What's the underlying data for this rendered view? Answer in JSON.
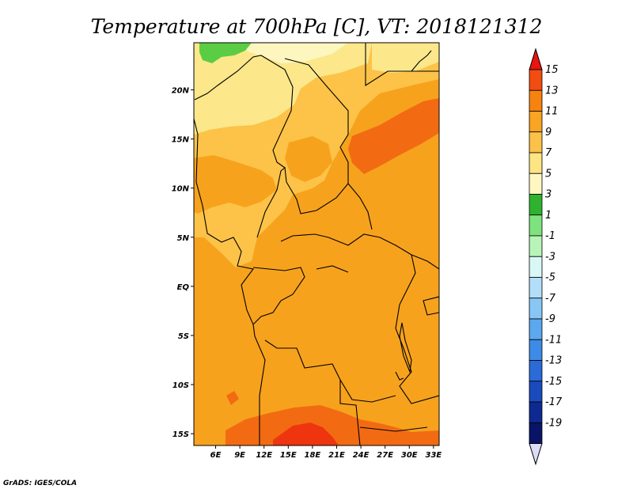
{
  "title": "Temperature at 700hPa [C], VT: 2018121312",
  "credit": "GrADS: IGES/COLA",
  "axes": {
    "lon_ticks": [
      "6E",
      "9E",
      "12E",
      "15E",
      "18E",
      "21E",
      "24E",
      "27E",
      "30E",
      "33E"
    ],
    "lat_ticks": [
      "20N",
      "15N",
      "10N",
      "5N",
      "EQ",
      "5S",
      "10S",
      "15S"
    ]
  },
  "map": {
    "lon_range": [
      3.3,
      33.7
    ],
    "lat_range": [
      -16.2,
      24.8
    ],
    "fill_colors": {
      "c5_7": "#fce78a",
      "c7_9": "#fcc348",
      "c9_11": "#f7a21d",
      "c11_13": "#f26b12",
      "c13_15": "#ee3510",
      "c1_3": "#5acd44",
      "c3_5": "#fdf6bf"
    }
  },
  "colorbar": {
    "labels": [
      "15",
      "13",
      "11",
      "9",
      "7",
      "5",
      "3",
      "1",
      "-1",
      "-3",
      "-5",
      "-7",
      "-9",
      "-11",
      "-13",
      "-15",
      "-17",
      "-19"
    ],
    "colors": [
      "#e8140e",
      "#f14d10",
      "#f7830f",
      "#f9a423",
      "#fbc24a",
      "#fde584",
      "#fef7c2",
      "#2fb32f",
      "#7ee37e",
      "#b8f4b8",
      "#d9f7f7",
      "#b3def9",
      "#88c7f5",
      "#5ba8ef",
      "#3d8be6",
      "#2a6bd8",
      "#1a4bbd",
      "#0e2a92",
      "#0a1466"
    ],
    "top_color": "#e8140e",
    "bottom_color": "#dcdcf8"
  },
  "colors": {
    "border_lines": "#000000",
    "frame": "#000000"
  }
}
